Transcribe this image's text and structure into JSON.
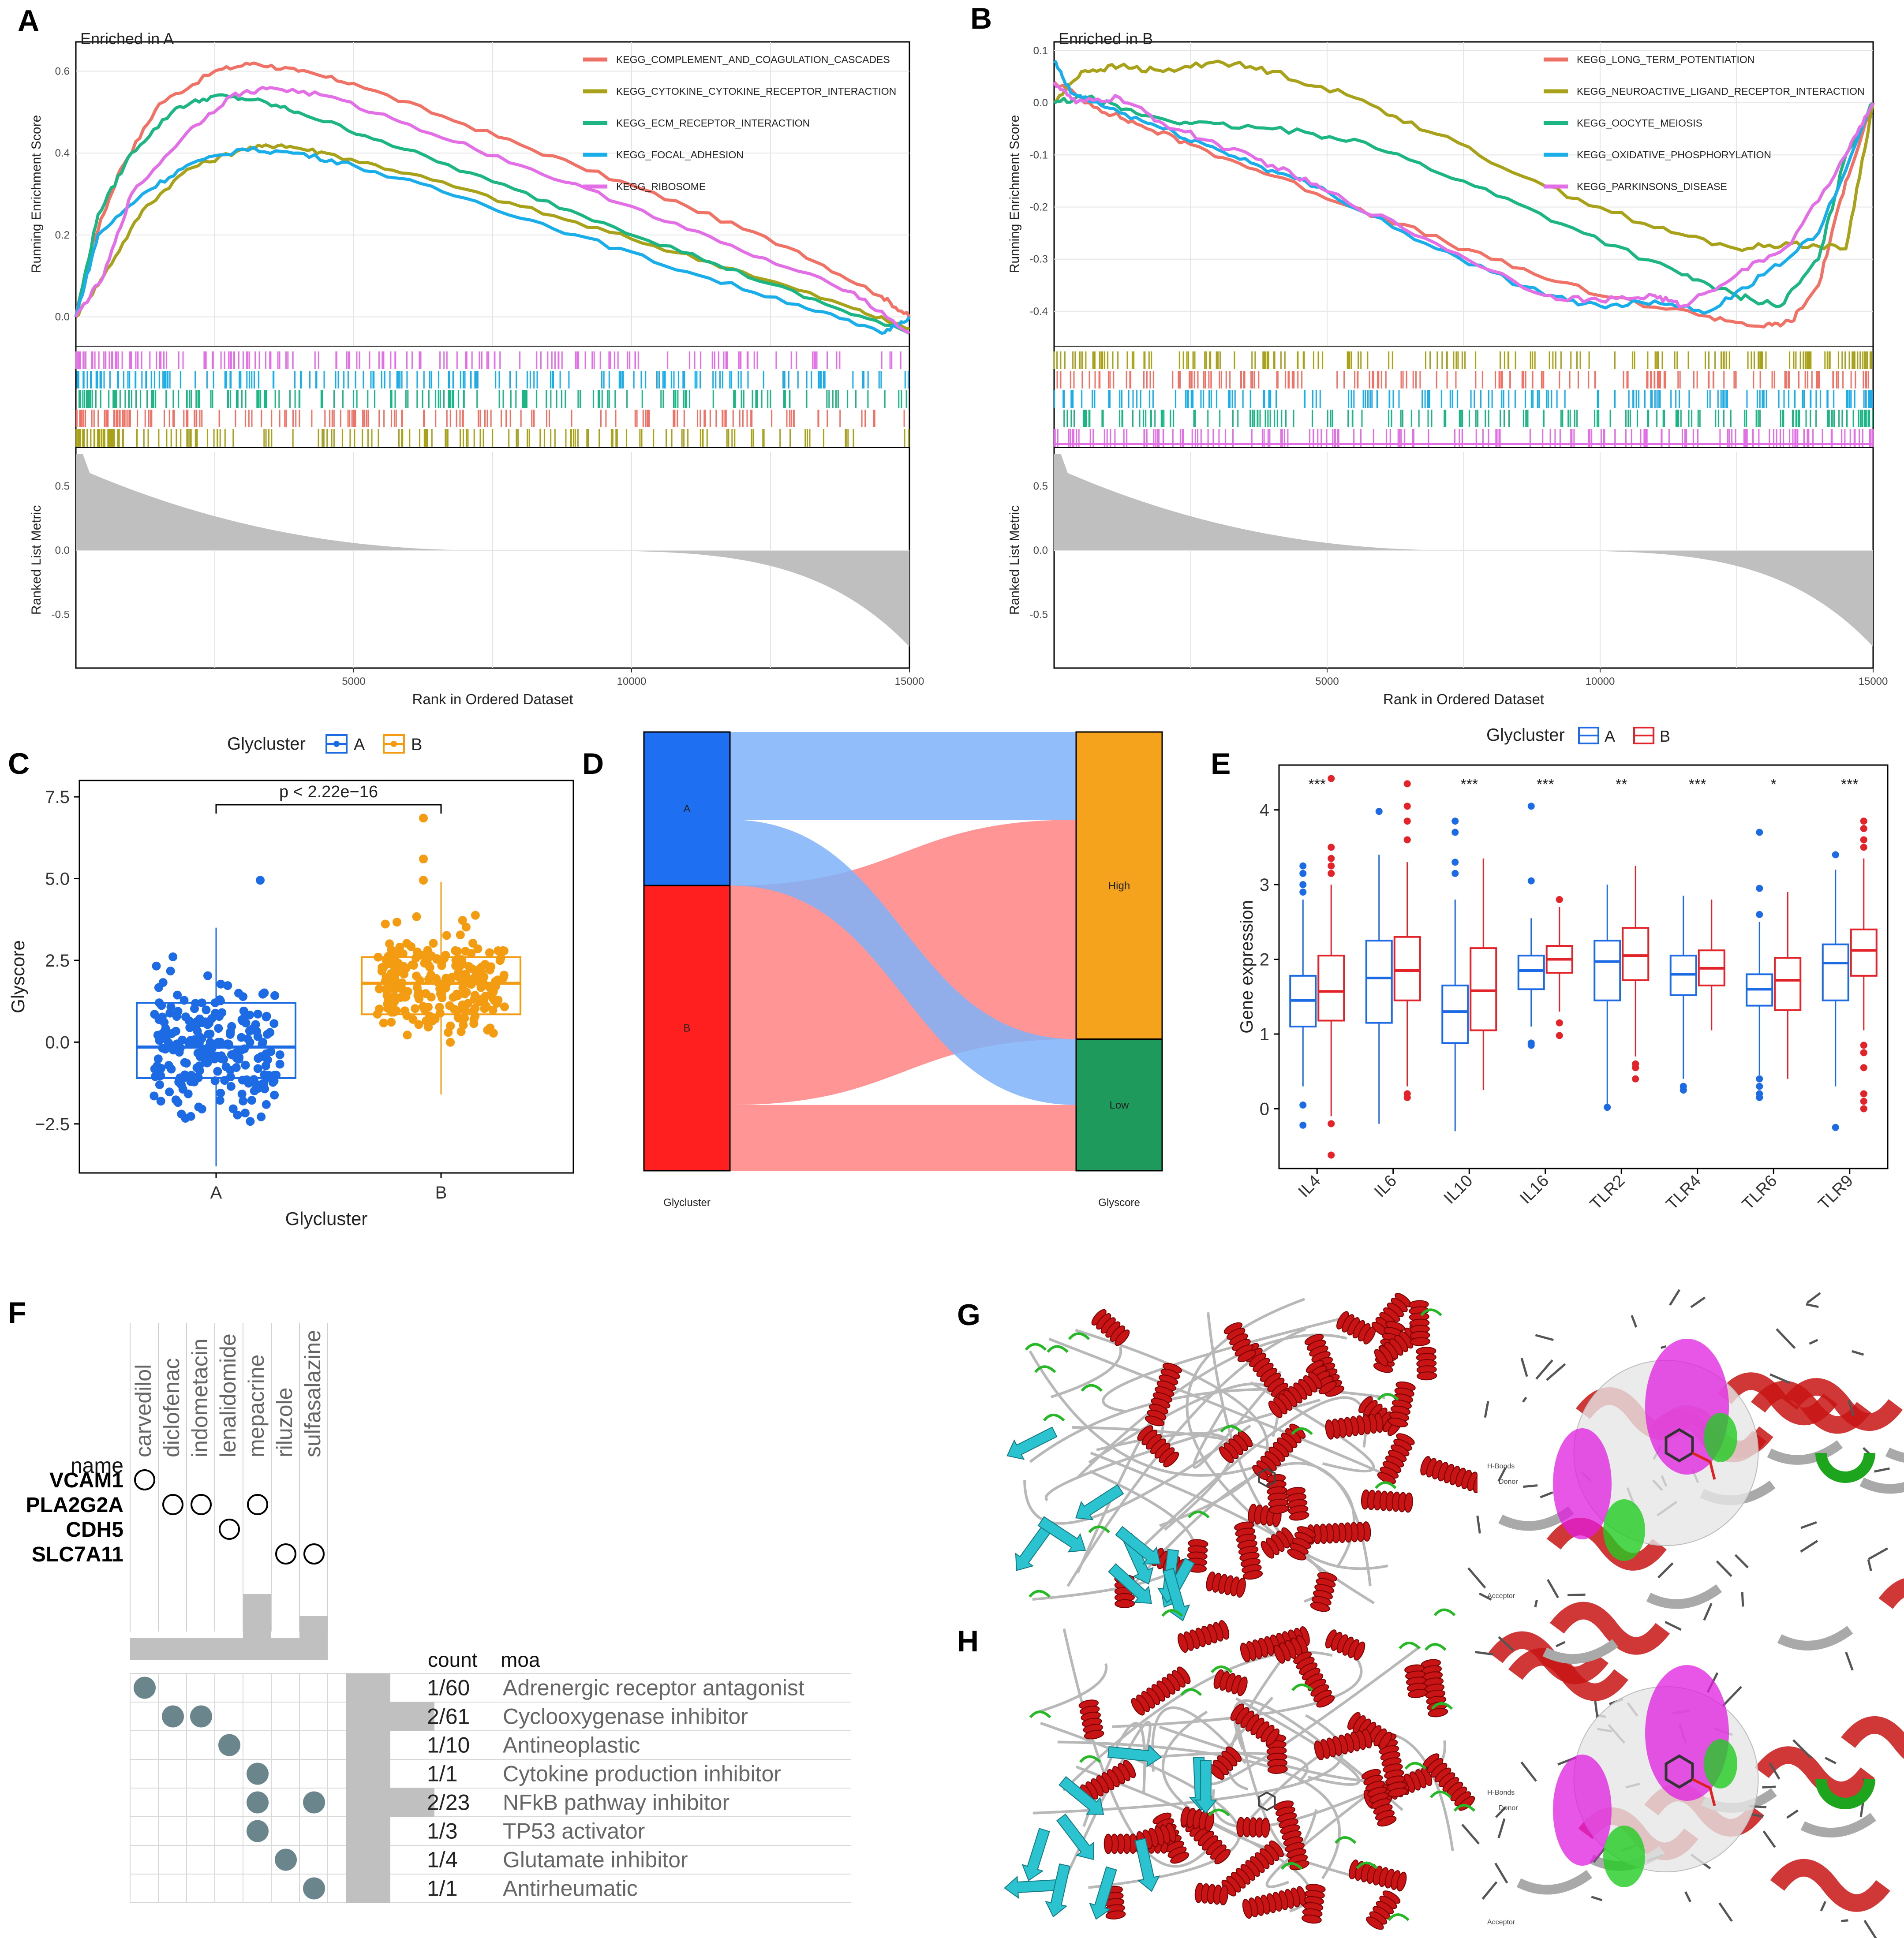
{
  "panels": {
    "A": "A",
    "B": "B",
    "C": "C",
    "D": "D",
    "E": "E",
    "F": "F",
    "G": "G",
    "H": "H"
  },
  "chart_data": [
    {
      "id": "A",
      "type": "line",
      "title": "Enriched in A",
      "xlabel": "Rank in Ordered Dataset",
      "ylabel": "Running Enrichment Score",
      "ylabel2": "Ranked List Metric",
      "xlim": [
        0,
        15000
      ],
      "ylim": [
        -0.05,
        0.65
      ],
      "xticks": [
        5000,
        10000,
        15000
      ],
      "xtick_labels": [
        "5000",
        "10000",
        "15000"
      ],
      "yticks": [
        0.0,
        0.2,
        0.4,
        0.6
      ],
      "ytick_labels": [
        "0.0",
        "0.2",
        "0.4",
        "0.6"
      ],
      "metric_ylim": [
        -0.9,
        0.75
      ],
      "metric_yticks": [
        0.5,
        0.0,
        -0.5
      ],
      "metric_ytick_labels": [
        "0.5",
        "0.0",
        "-0.5"
      ],
      "series": [
        {
          "name": "KEGG_COMPLEMENT_AND_COAGULATION_CASCADES",
          "color": "#F07266",
          "x": [
            0,
            300,
            800,
            1500,
            2500,
            3200,
            4000,
            5000,
            7000,
            9000,
            11000,
            13000,
            14500,
            15000
          ],
          "values": [
            0.0,
            0.18,
            0.36,
            0.52,
            0.6,
            0.62,
            0.6,
            0.57,
            0.47,
            0.37,
            0.27,
            0.16,
            0.05,
            0.0
          ]
        },
        {
          "name": "KEGG_CYTOKINE_CYTOKINE_RECEPTOR_INTERACTION",
          "color": "#A8A21A",
          "x": [
            0,
            500,
            1200,
            2000,
            3000,
            3700,
            4500,
            6000,
            8000,
            10000,
            12000,
            14000,
            15000
          ],
          "values": [
            0.0,
            0.1,
            0.26,
            0.36,
            0.41,
            0.42,
            0.4,
            0.35,
            0.27,
            0.19,
            0.11,
            0.02,
            -0.03
          ]
        },
        {
          "name": "KEGG_ECM_RECEPTOR_INTERACTION",
          "color": "#1DB584",
          "x": [
            0,
            400,
            1000,
            1800,
            2500,
            3200,
            4000,
            5500,
            7500,
            9500,
            11500,
            13500,
            15000
          ],
          "values": [
            0.0,
            0.25,
            0.4,
            0.51,
            0.54,
            0.53,
            0.5,
            0.43,
            0.33,
            0.23,
            0.13,
            0.03,
            -0.04
          ]
        },
        {
          "name": "KEGG_FOCAL_ADHESION",
          "color": "#19AEEA",
          "x": [
            0,
            400,
            1200,
            2000,
            3000,
            4000,
            5000,
            7000,
            9000,
            11000,
            13000,
            14500,
            15000
          ],
          "values": [
            0.0,
            0.2,
            0.3,
            0.37,
            0.41,
            0.4,
            0.37,
            0.29,
            0.2,
            0.11,
            0.03,
            -0.04,
            0.0
          ]
        },
        {
          "name": "KEGG_RIBOSOME",
          "color": "#E26FE6",
          "x": [
            0,
            500,
            1000,
            2000,
            2800,
            3500,
            4500,
            6000,
            8000,
            10000,
            12000,
            14000,
            15000
          ],
          "values": [
            0.0,
            0.1,
            0.3,
            0.45,
            0.54,
            0.56,
            0.54,
            0.47,
            0.37,
            0.27,
            0.16,
            0.06,
            -0.04
          ]
        }
      ]
    },
    {
      "id": "B",
      "type": "line",
      "title": "Enriched in B",
      "xlabel": "Rank in Ordered Dataset",
      "ylabel": "Running Enrichment Score",
      "ylabel2": "Ranked List Metric",
      "xlim": [
        0,
        15000
      ],
      "ylim": [
        -0.45,
        0.1
      ],
      "xticks": [
        5000,
        10000,
        15000
      ],
      "xtick_labels": [
        "5000",
        "10000",
        "15000"
      ],
      "yticks": [
        0.1,
        0.0,
        -0.1,
        -0.2,
        -0.3,
        -0.4
      ],
      "ytick_labels": [
        "0.1",
        "0.0",
        "-0.1",
        "-0.2",
        "-0.3",
        "-0.4"
      ],
      "metric_ylim": [
        -0.9,
        0.75
      ],
      "metric_yticks": [
        0.5,
        0.0,
        -0.5
      ],
      "metric_ytick_labels": [
        "0.5",
        "0.0",
        "-0.5"
      ],
      "series": [
        {
          "name": "KEGG_LONG_TERM_POTENTIATION",
          "color": "#F07266",
          "x": [
            0,
            800,
            1500,
            2500,
            4000,
            6000,
            8000,
            10000,
            12000,
            13000,
            13500,
            14000,
            14500,
            15000
          ],
          "values": [
            0.04,
            -0.01,
            -0.04,
            -0.08,
            -0.14,
            -0.22,
            -0.3,
            -0.37,
            -0.41,
            -0.43,
            -0.42,
            -0.35,
            -0.15,
            0.0
          ]
        },
        {
          "name": "KEGG_NEUROACTIVE_LIGAND_RECEPTOR_INTERACTION",
          "color": "#A8A21A",
          "x": [
            0,
            500,
            1200,
            2000,
            3000,
            4000,
            5500,
            7000,
            9000,
            11000,
            12500,
            13500,
            14500,
            15000
          ],
          "values": [
            0.0,
            0.06,
            0.07,
            0.06,
            0.08,
            0.06,
            0.01,
            -0.06,
            -0.16,
            -0.24,
            -0.28,
            -0.27,
            -0.28,
            0.0
          ]
        },
        {
          "name": "KEGG_OOCYTE_MEIOSIS",
          "color": "#1DB584",
          "x": [
            0,
            600,
            1500,
            2500,
            4000,
            5500,
            7500,
            9500,
            11500,
            12500,
            13300,
            14000,
            14500,
            15000
          ],
          "values": [
            0.0,
            0.01,
            -0.02,
            -0.04,
            -0.05,
            -0.07,
            -0.15,
            -0.24,
            -0.33,
            -0.37,
            -0.39,
            -0.3,
            -0.1,
            0.0
          ]
        },
        {
          "name": "KEGG_OXIDATIVE_PHOSPHORYLATION",
          "color": "#19AEEA",
          "x": [
            0,
            300,
            1000,
            2000,
            3000,
            4000,
            5000,
            7000,
            9000,
            10000,
            11000,
            12000,
            13000,
            14000,
            15000
          ],
          "values": [
            0.08,
            0.02,
            -0.01,
            -0.05,
            -0.09,
            -0.13,
            -0.17,
            -0.28,
            -0.37,
            -0.39,
            -0.38,
            -0.4,
            -0.33,
            -0.25,
            0.0
          ]
        },
        {
          "name": "KEGG_PARKINSONS_DISEASE",
          "color": "#E26FE6",
          "x": [
            0,
            400,
            1200,
            2000,
            3000,
            4000,
            5000,
            7000,
            9000,
            10000,
            11000,
            11500,
            12500,
            13500,
            14500,
            15000
          ],
          "values": [
            0.04,
            0.0,
            0.01,
            -0.04,
            -0.08,
            -0.12,
            -0.17,
            -0.27,
            -0.37,
            -0.38,
            -0.37,
            -0.39,
            -0.33,
            -0.27,
            -0.1,
            0.0
          ]
        }
      ]
    },
    {
      "id": "C",
      "type": "box",
      "xlabel": "Glycluster",
      "ylabel": "Glyscore",
      "legend_title": "Glycluster",
      "categories": [
        "A",
        "B"
      ],
      "colors": [
        "#1D6AE5",
        "#F39C12"
      ],
      "ylim": [
        -4.0,
        8.0
      ],
      "yticks": [
        -2.5,
        0.0,
        2.5,
        5.0,
        7.5
      ],
      "ytick_labels": [
        "−2.5",
        "0.0",
        "2.5",
        "5.0",
        "7.5"
      ],
      "boxes": [
        {
          "name": "A",
          "q1": -1.1,
          "median": -0.15,
          "q3": 1.2,
          "whisker_low": -3.8,
          "whisker_high": 3.5,
          "outliers": [
            4.95
          ]
        },
        {
          "name": "B",
          "q1": 0.85,
          "median": 1.8,
          "q3": 2.6,
          "whisker_low": -1.6,
          "whisker_high": 4.9,
          "outliers": [
            5.6,
            6.85,
            4.95
          ]
        }
      ],
      "annotation": "p < 2.22e−16"
    },
    {
      "id": "D",
      "type": "sankey",
      "left_axis_label": "Glycluster",
      "right_axis_label": "Glyscore",
      "left_nodes": [
        {
          "name": "A",
          "color": "#1F6FF2",
          "value": 35
        },
        {
          "name": "B",
          "color": "#FF1F1F",
          "value": 65
        }
      ],
      "right_nodes": [
        {
          "name": "High",
          "color": "#F5A21C",
          "value": 70
        },
        {
          "name": "Low",
          "color": "#1E9A5C",
          "value": 30
        }
      ],
      "flows": [
        {
          "source": "A",
          "target": "High",
          "value": 20,
          "color": "#7EB2F9"
        },
        {
          "source": "A",
          "target": "Low",
          "value": 15,
          "color": "#7EB2F9"
        },
        {
          "source": "B",
          "target": "High",
          "value": 50,
          "color": "#FF8282"
        },
        {
          "source": "B",
          "target": "Low",
          "value": 15,
          "color": "#FF8282"
        }
      ]
    },
    {
      "id": "E",
      "type": "box",
      "xlabel": "",
      "ylabel": "Gene expression",
      "legend_title": "Glycluster",
      "legend_entries": [
        "A",
        "B"
      ],
      "colors": [
        "#1D6AE5",
        "#E2242A"
      ],
      "categories": [
        "IL4",
        "IL6",
        "IL10",
        "IL16",
        "TLR2",
        "TLR4",
        "TLR6",
        "TLR9"
      ],
      "significance": [
        "***",
        "",
        "***",
        "***",
        "**",
        "***",
        "*",
        "***"
      ],
      "ylim": [
        -0.8,
        4.6
      ],
      "yticks": [
        0,
        1,
        2,
        3,
        4
      ],
      "ytick_labels": [
        "0",
        "1",
        "2",
        "3",
        "4"
      ],
      "series": [
        {
          "name": "A",
          "boxes": [
            {
              "q1": 1.1,
              "median": 1.45,
              "q3": 1.78,
              "low": 0.3,
              "high": 2.8,
              "outliers": [
                3.25,
                3.15,
                3.0,
                2.9,
                0.05,
                -0.22
              ]
            },
            {
              "q1": 1.15,
              "median": 1.75,
              "q3": 2.25,
              "low": -0.2,
              "high": 3.4,
              "outliers": [
                3.98
              ]
            },
            {
              "q1": 0.88,
              "median": 1.3,
              "q3": 1.65,
              "low": -0.3,
              "high": 2.8,
              "outliers": [
                3.85,
                3.7,
                3.3,
                3.15
              ]
            },
            {
              "q1": 1.6,
              "median": 1.85,
              "q3": 2.05,
              "low": 1.1,
              "high": 2.55,
              "outliers": [
                4.05,
                3.05,
                0.88,
                0.85
              ]
            },
            {
              "q1": 1.45,
              "median": 1.97,
              "q3": 2.25,
              "low": 0.05,
              "high": 3.0,
              "outliers": [
                0.02
              ]
            },
            {
              "q1": 1.52,
              "median": 1.8,
              "q3": 2.05,
              "low": 0.4,
              "high": 2.85,
              "outliers": [
                0.3,
                0.25
              ]
            },
            {
              "q1": 1.38,
              "median": 1.6,
              "q3": 1.8,
              "low": 0.45,
              "high": 2.5,
              "outliers": [
                3.7,
                2.95,
                2.6,
                0.4,
                0.3,
                0.2,
                0.15
              ]
            },
            {
              "q1": 1.45,
              "median": 1.95,
              "q3": 2.2,
              "low": 0.3,
              "high": 3.2,
              "outliers": [
                3.4,
                -0.25
              ]
            }
          ]
        },
        {
          "name": "B",
          "boxes": [
            {
              "q1": 1.18,
              "median": 1.57,
              "q3": 2.05,
              "low": -0.1,
              "high": 3.0,
              "outliers": [
                4.42,
                3.5,
                3.35,
                3.25,
                3.15,
                -0.2,
                -0.62
              ]
            },
            {
              "q1": 1.45,
              "median": 1.85,
              "q3": 2.3,
              "low": 0.3,
              "high": 3.3,
              "outliers": [
                4.35,
                4.05,
                3.85,
                3.6,
                0.2,
                0.15
              ]
            },
            {
              "q1": 1.05,
              "median": 1.58,
              "q3": 2.15,
              "low": 0.25,
              "high": 3.35,
              "outliers": []
            },
            {
              "q1": 1.82,
              "median": 2.0,
              "q3": 2.18,
              "low": 1.3,
              "high": 2.7,
              "outliers": [
                2.8,
                1.15,
                0.98
              ]
            },
            {
              "q1": 1.72,
              "median": 2.05,
              "q3": 2.42,
              "low": 0.7,
              "high": 3.25,
              "outliers": [
                0.6,
                0.55,
                0.4
              ]
            },
            {
              "q1": 1.65,
              "median": 1.88,
              "q3": 2.12,
              "low": 1.05,
              "high": 2.8,
              "outliers": []
            },
            {
              "q1": 1.32,
              "median": 1.72,
              "q3": 2.02,
              "low": 0.4,
              "high": 2.9,
              "outliers": []
            },
            {
              "q1": 1.78,
              "median": 2.12,
              "q3": 2.4,
              "low": 1.05,
              "high": 3.35,
              "outliers": [
                3.85,
                3.75,
                3.6,
                3.5,
                0.85,
                0.75,
                0.55,
                0.2,
                0.1,
                0.0
              ]
            }
          ]
        }
      ]
    },
    {
      "id": "F",
      "type": "table",
      "name_header": "name",
      "genes": [
        "VCAM1",
        "PLA2G2A",
        "CDH5",
        "SLC7A11"
      ],
      "drugs": [
        "carvedilol",
        "diclofenac",
        "indometacin",
        "lenalidomide",
        "mepacrine",
        "riluzole",
        "sulfasalazine"
      ],
      "gene_drug_hits": [
        [
          0,
          0
        ],
        [
          1,
          1
        ],
        [
          1,
          2
        ],
        [
          1,
          4
        ],
        [
          2,
          3
        ],
        [
          3,
          5
        ],
        [
          3,
          6
        ]
      ],
      "drug_bar_values": [
        1,
        1,
        1,
        1,
        3,
        1,
        2
      ],
      "count_header": "count",
      "moa_header": "moa",
      "moa_rows": [
        {
          "count": "1/60",
          "moa": "Adrenergic receptor antagonist",
          "drugs": [
            0
          ],
          "bar": 1
        },
        {
          "count": "2/61",
          "moa": "Cyclooxygenase inhibitor",
          "drugs": [
            1,
            2
          ],
          "bar": 2
        },
        {
          "count": "1/10",
          "moa": "Antineoplastic",
          "drugs": [
            3
          ],
          "bar": 1
        },
        {
          "count": "1/1",
          "moa": "Cytokine production inhibitor",
          "drugs": [
            4
          ],
          "bar": 1
        },
        {
          "count": "2/23",
          "moa": "NFkB pathway inhibitor",
          "drugs": [
            4,
            6
          ],
          "bar": 2
        },
        {
          "count": "1/3",
          "moa": "TP53 activator",
          "drugs": [
            4
          ],
          "bar": 1
        },
        {
          "count": "1/4",
          "moa": "Glutamate inhibitor",
          "drugs": [
            5
          ],
          "bar": 1
        },
        {
          "count": "1/1",
          "moa": "Antirheumatic",
          "drugs": [
            6
          ],
          "bar": 1
        }
      ]
    }
  ],
  "docking": {
    "g_labels": [
      "H-Bonds",
      "Donor",
      "Acceptor"
    ],
    "h_labels": [
      "H-Bonds",
      "Donor",
      "Acceptor"
    ]
  }
}
